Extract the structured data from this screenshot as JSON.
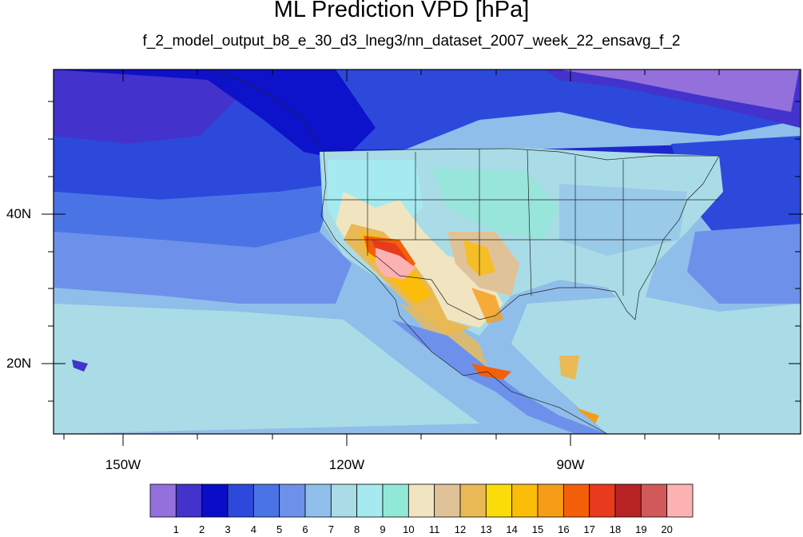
{
  "title": "ML Prediction VPD [hPa]",
  "subtitle": "f_2_model_output_b8_e_30_d3_lneg3/nn_dataset_2007_week_22_ensavg_f_2",
  "lat_labels": [
    "40N",
    "20N"
  ],
  "lon_labels": [
    "150W",
    "120W",
    "90W"
  ],
  "colorbar": {
    "labels": [
      "1",
      "2",
      "3",
      "4",
      "5",
      "6",
      "7",
      "8",
      "9",
      "10",
      "11",
      "12",
      "13",
      "14",
      "15",
      "16",
      "17",
      "18",
      "19",
      "20"
    ],
    "colors": [
      "#9370db",
      "#4332cb",
      "#0a0dc8",
      "#2c49dc",
      "#4a74e6",
      "#6d91ea",
      "#8fbeea",
      "#a9dce6",
      "#a5eaf0",
      "#92e8d6",
      "#f1e4c0",
      "#dfc298",
      "#e8b955",
      "#fbdc0a",
      "#fbbd0a",
      "#f79c17",
      "#f45f0a",
      "#e83a1c",
      "#b82323",
      "#d25959",
      "#fcb2b2"
    ]
  },
  "map_extent": {
    "lon_min": -160,
    "lon_max": -62,
    "lat_min": 10,
    "lat_max": 60
  }
}
